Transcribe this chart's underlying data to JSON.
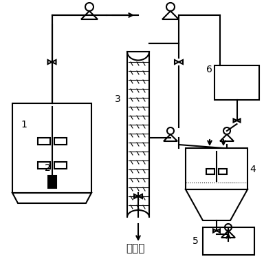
{
  "title": "",
  "bottom_label": "萨余液",
  "label_1": "1",
  "label_2": "2",
  "label_3": "3",
  "label_4": "4",
  "label_5": "5",
  "label_6": "6",
  "line_color": "#000000",
  "bg_color": "#ffffff",
  "figsize": [
    4.0,
    3.76
  ],
  "dpi": 100
}
